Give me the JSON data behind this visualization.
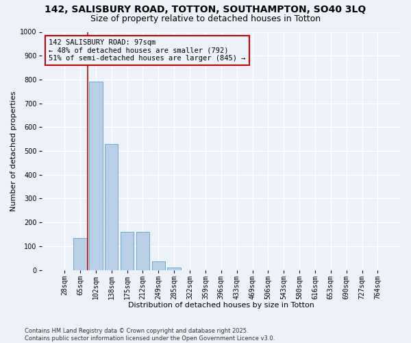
{
  "title": "142, SALISBURY ROAD, TOTTON, SOUTHAMPTON, SO40 3LQ",
  "subtitle": "Size of property relative to detached houses in Totton",
  "xlabel": "Distribution of detached houses by size in Totton",
  "ylabel": "Number of detached properties",
  "footer1": "Contains HM Land Registry data © Crown copyright and database right 2025.",
  "footer2": "Contains public sector information licensed under the Open Government Licence v3.0.",
  "categories": [
    "28sqm",
    "65sqm",
    "102sqm",
    "138sqm",
    "175sqm",
    "212sqm",
    "249sqm",
    "285sqm",
    "322sqm",
    "359sqm",
    "396sqm",
    "433sqm",
    "469sqm",
    "506sqm",
    "543sqm",
    "580sqm",
    "616sqm",
    "653sqm",
    "690sqm",
    "727sqm",
    "764sqm"
  ],
  "values": [
    0,
    135,
    790,
    530,
    160,
    160,
    35,
    10,
    0,
    0,
    0,
    0,
    0,
    0,
    0,
    0,
    0,
    0,
    0,
    0,
    0
  ],
  "bar_color": "#b8cfe8",
  "bar_edge_color": "#6aaad4",
  "ylim": [
    0,
    1000
  ],
  "yticks": [
    0,
    100,
    200,
    300,
    400,
    500,
    600,
    700,
    800,
    900,
    1000
  ],
  "vline_x_idx": 1.5,
  "vline_color": "#cc0000",
  "annotation_line1": "142 SALISBURY ROAD: 97sqm",
  "annotation_line2": "← 48% of detached houses are smaller (792)",
  "annotation_line3": "51% of semi-detached houses are larger (845) →",
  "annotation_box_color": "#cc0000",
  "background_color": "#edf2f9",
  "grid_color": "#ffffff",
  "title_fontsize": 10,
  "subtitle_fontsize": 9,
  "xlabel_fontsize": 8,
  "ylabel_fontsize": 8,
  "tick_fontsize": 7,
  "annotation_fontsize": 7.5,
  "footer_fontsize": 6
}
